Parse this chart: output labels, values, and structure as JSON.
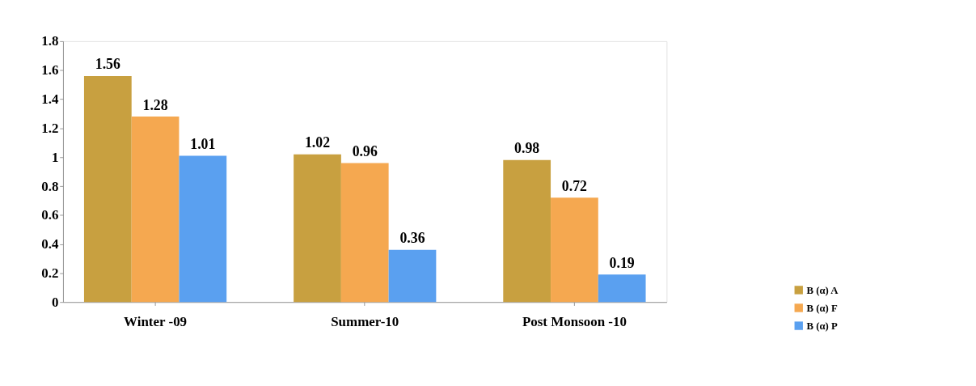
{
  "chart_data": {
    "type": "bar",
    "categories": [
      "Winter -09",
      "Summer-10",
      "Post Monsoon -10"
    ],
    "series": [
      {
        "name": "B (α) A",
        "color": "#c8a040",
        "values": [
          1.56,
          1.02,
          0.98
        ]
      },
      {
        "name": "B (α) F",
        "color": "#f5a850",
        "values": [
          1.28,
          0.96,
          0.72
        ]
      },
      {
        "name": "B (α) P",
        "color": "#5aa0f0",
        "values": [
          1.01,
          0.36,
          0.19
        ]
      }
    ],
    "ylim": [
      0,
      1.8
    ],
    "yticks": [
      0,
      0.2,
      0.4,
      0.6,
      0.8,
      1,
      1.2,
      1.4,
      1.6,
      1.8
    ],
    "data_labels": true,
    "legend": "bottom right",
    "grid": false
  }
}
